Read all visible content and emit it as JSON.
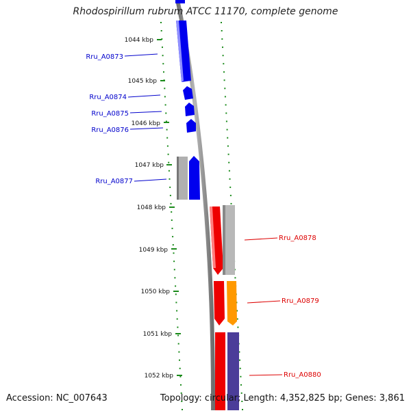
{
  "title": "Rhodospirillum rubrum ATCC 11170, complete genome",
  "accession": "Accession: NC_007643",
  "topology": "Topology: circular; Length: 4,352,825 bp; Genes: 3,861",
  "colors": {
    "blue": "#0000ee",
    "red": "#ee0000",
    "orange": "#ff9900",
    "purple": "#4b3d99",
    "gray": "#b0b0b0",
    "tick_green": "#1a8a1a",
    "blue_label": "#0000cc",
    "red_label": "#dd0000"
  },
  "scale_labels": [
    "1044 kbp",
    "1045 kbp",
    "1046 kbp",
    "1047 kbp",
    "1048 kbp",
    "1049 kbp",
    "1050 kbp",
    "1051 kbp",
    "1052 kbp"
  ],
  "genes": [
    {
      "name": "Rru_A0873",
      "color": "blue"
    },
    {
      "name": "Rru_A0874",
      "color": "blue"
    },
    {
      "name": "Rru_A0875",
      "color": "blue"
    },
    {
      "name": "Rru_A0876",
      "color": "blue"
    },
    {
      "name": "Rru_A0877",
      "color": "blue"
    },
    {
      "name": "Rru_A0878",
      "color": "red"
    },
    {
      "name": "Rru_A0879",
      "color": "red"
    },
    {
      "name": "Rru_A0880",
      "color": "red"
    }
  ]
}
